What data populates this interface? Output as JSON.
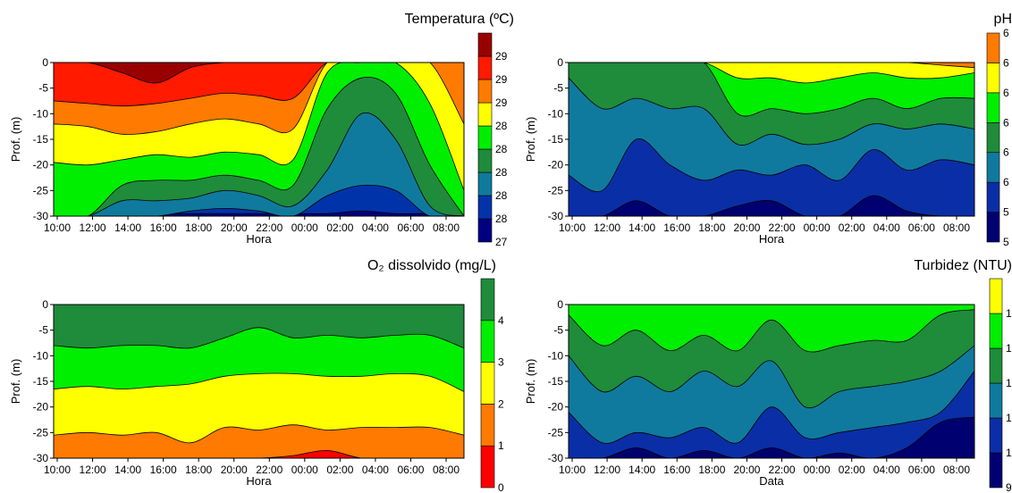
{
  "chart_data": [
    {
      "type": "heatmap",
      "title": "Temperatura (ºC)",
      "xlabel": "Hora",
      "ylabel": "Prof. (m)",
      "x_ticks": [
        "10:00",
        "12:00",
        "14:00",
        "16:00",
        "18:00",
        "20:00",
        "22:00",
        "00:00",
        "02:00",
        "04:00",
        "06:00",
        "08:00"
      ],
      "y_ticks": [
        "0",
        "-5",
        "-10",
        "-15",
        "-20",
        "-25",
        "-30"
      ],
      "ylim": [
        -30,
        0
      ],
      "colorbar_labels": [
        "27",
        "28",
        "28",
        "28",
        "28",
        "28",
        "29",
        "29",
        "29"
      ],
      "colorbar_colors": [
        "#000080",
        "#0033aa",
        "#0f7a9e",
        "#1e8c3a",
        "#00ee00",
        "#ffff00",
        "#ff7a00",
        "#ff1a00",
        "#990000"
      ],
      "boundaries": [
        [
          -29.5,
          -29.5,
          -29.5,
          -29.5,
          -29.5,
          -29.5,
          -29.5,
          -29.5,
          -29.5,
          -29.0,
          -29.5,
          -29.5,
          -29.5
        ],
        [
          -30.0,
          -30.0,
          -30.0,
          -30.0,
          -29.0,
          -28.5,
          -29.0,
          -30.0,
          -26.0,
          -24.0,
          -25.0,
          -30.0,
          -30.0
        ],
        [
          -30.0,
          -30.0,
          -27.0,
          -27.0,
          -26.5,
          -25.0,
          -26.0,
          -28.0,
          -21.0,
          -10.0,
          -15.0,
          -28.0,
          -30.0
        ],
        [
          -30.0,
          -30.0,
          -24.0,
          -23.0,
          -23.0,
          -22.0,
          -23.0,
          -24.0,
          -9.0,
          -3.0,
          -6.0,
          -20.0,
          -30.0
        ],
        [
          -19.5,
          -20.0,
          -19.0,
          -18.0,
          -18.5,
          -17.5,
          -18.0,
          -19.0,
          -2.0,
          0.0,
          0.0,
          -8.0,
          -25.0
        ],
        [
          -12.0,
          -12.5,
          -14.0,
          -13.5,
          -12.0,
          -11.0,
          -12.0,
          -13.0,
          0.0,
          0.0,
          0.0,
          0.0,
          -12.0
        ],
        [
          -7.5,
          -8.0,
          -8.5,
          -8.0,
          -7.0,
          -6.0,
          -6.5,
          -7.0,
          0.0,
          0.0,
          0.0,
          0.0,
          0.0
        ],
        [
          0.0,
          0.0,
          -2.0,
          -4.0,
          -1.0,
          0.0,
          0.0,
          0.0,
          0.0,
          0.0,
          0.0,
          0.0,
          0.0
        ]
      ]
    },
    {
      "type": "heatmap",
      "title": "pH",
      "xlabel": "Hora",
      "ylabel": "Prof. (m)",
      "x_ticks": [
        "10:00",
        "12:00",
        "14:00",
        "16:00",
        "18:00",
        "20:00",
        "22:00",
        "00:00",
        "02:00",
        "04:00",
        "06:00",
        "08:00"
      ],
      "y_ticks": [
        "0",
        "-5",
        "-10",
        "-15",
        "-20",
        "-25",
        "-30"
      ],
      "ylim": [
        -30,
        0
      ],
      "colorbar_labels": [
        "5",
        "5",
        "6",
        "6",
        "6",
        "6",
        "6",
        "6"
      ],
      "colorbar_colors": [
        "#000070",
        "#0a2ea6",
        "#0f7a9e",
        "#1e8c3a",
        "#00ee00",
        "#ffff00",
        "#ff7a00"
      ],
      "boundaries": [
        [
          -30.0,
          -30.0,
          -27.0,
          -30.0,
          -30.0,
          -28.0,
          -27.0,
          -30.0,
          -30.0,
          -26.0,
          -29.0,
          -30.0,
          -30.0
        ],
        [
          -22.0,
          -25.0,
          -15.0,
          -20.0,
          -23.0,
          -21.0,
          -22.0,
          -20.0,
          -23.0,
          -17.0,
          -21.0,
          -19.0,
          -20.0
        ],
        [
          -3.0,
          -9.0,
          -7.0,
          -9.0,
          -9.0,
          -16.0,
          -14.0,
          -16.0,
          -15.0,
          -12.0,
          -13.0,
          -12.0,
          -13.0
        ],
        [
          0.0,
          0.0,
          0.0,
          0.0,
          0.0,
          -10.0,
          -9.0,
          -10.0,
          -9.0,
          -7.0,
          -9.0,
          -7.0,
          -7.0
        ],
        [
          0.0,
          0.0,
          0.0,
          0.0,
          0.0,
          -3.0,
          -3.0,
          -4.0,
          -3.0,
          -2.0,
          -3.0,
          -3.0,
          -2.0
        ],
        [
          0.0,
          0.0,
          0.0,
          0.0,
          0.0,
          0.0,
          0.0,
          0.0,
          0.0,
          0.0,
          0.0,
          -0.5,
          -1.0
        ]
      ]
    },
    {
      "type": "heatmap",
      "title": "O₂ dissolvido (mg/L)",
      "xlabel": "Hora",
      "ylabel": "Prof. (m)",
      "x_ticks": [
        "10:00",
        "12:00",
        "14:00",
        "16:00",
        "18:00",
        "20:00",
        "22:00",
        "00:00",
        "02:00",
        "04:00",
        "06:00",
        "08:00"
      ],
      "y_ticks": [
        "0",
        "-5",
        "-10",
        "-15",
        "-20",
        "-25",
        "-30"
      ],
      "ylim": [
        -30,
        0
      ],
      "colorbar_labels": [
        "0",
        "1",
        "2",
        "3",
        "4"
      ],
      "colorbar_colors": [
        "#ff0000",
        "#ff7a00",
        "#ffff00",
        "#00ee00",
        "#1e8c3a"
      ],
      "boundaries": [
        [
          -30.0,
          -30.0,
          -30.0,
          -30.0,
          -30.0,
          -30.0,
          -30.0,
          -29.5,
          -28.5,
          -30.0,
          -30.0,
          -30.0,
          -30.0
        ],
        [
          -25.5,
          -25.0,
          -25.5,
          -25.0,
          -27.0,
          -24.0,
          -24.5,
          -23.5,
          -24.5,
          -24.0,
          -24.0,
          -24.0,
          -25.5
        ],
        [
          -16.5,
          -16.0,
          -16.5,
          -16.0,
          -15.5,
          -14.0,
          -13.5,
          -13.5,
          -14.0,
          -14.0,
          -13.5,
          -14.0,
          -17.0
        ],
        [
          -8.0,
          -8.5,
          -8.0,
          -8.0,
          -8.5,
          -6.5,
          -4.5,
          -6.5,
          -6.0,
          -6.5,
          -6.0,
          -6.0,
          -8.5
        ]
      ]
    },
    {
      "type": "heatmap",
      "title": "Turbidez (NTU)",
      "xlabel": "Data",
      "ylabel": "Prof. (m)",
      "x_ticks": [
        "10:00",
        "12:00",
        "14:00",
        "16:00",
        "18:00",
        "20:00",
        "22:00",
        "00:00",
        "02:00",
        "04:00",
        "06:00",
        "08:00"
      ],
      "y_ticks": [
        "0",
        "-5",
        "-10",
        "-15",
        "-20",
        "-25",
        "-30"
      ],
      "ylim": [
        -30,
        0
      ],
      "colorbar_labels": [
        "9",
        "1",
        "1",
        "1",
        "1",
        "1"
      ],
      "colorbar_colors": [
        "#000070",
        "#0a2ea6",
        "#0f7a9e",
        "#1e8c3a",
        "#00ee00",
        "#ffff00"
      ],
      "boundaries": [
        [
          -30.0,
          -30.0,
          -28.0,
          -30.0,
          -28.5,
          -30.0,
          -28.0,
          -30.0,
          -29.0,
          -30.0,
          -28.0,
          -23.0,
          -22.0
        ],
        [
          -21.0,
          -27.0,
          -25.0,
          -26.0,
          -24.0,
          -27.0,
          -20.0,
          -26.0,
          -25.0,
          -24.0,
          -23.0,
          -21.0,
          -13.0
        ],
        [
          -10.0,
          -17.0,
          -14.0,
          -17.0,
          -13.0,
          -16.0,
          -11.0,
          -20.0,
          -17.0,
          -16.0,
          -15.0,
          -13.0,
          -8.0
        ],
        [
          -2.0,
          -8.0,
          -5.0,
          -9.0,
          -6.0,
          -9.0,
          -3.0,
          -9.0,
          -8.0,
          -7.0,
          -7.0,
          -2.0,
          -1.0
        ]
      ]
    }
  ]
}
